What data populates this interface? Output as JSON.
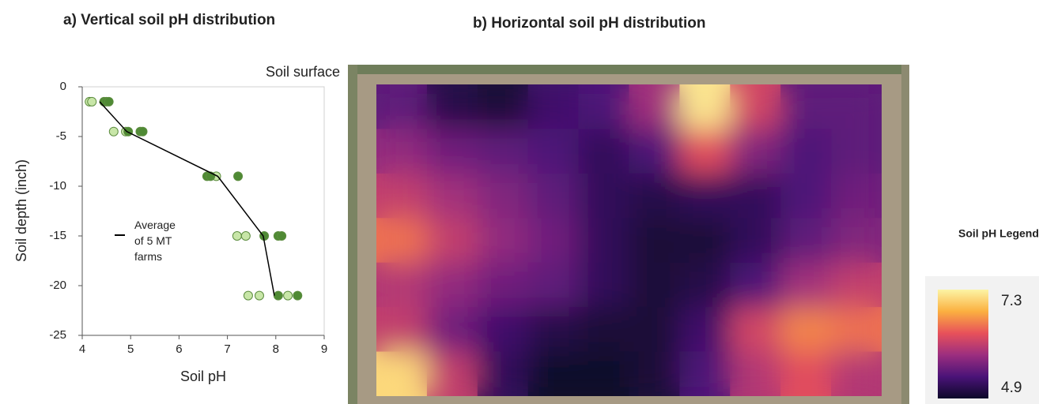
{
  "chart_data": [
    {
      "type": "scatter",
      "title": "a) Vertical soil pH distribution",
      "xlabel": "Soil pH",
      "ylabel": "Soil depth (inch)",
      "annotation": "Soil surface",
      "xlim": [
        4,
        9
      ],
      "xticks": [
        4,
        5,
        6,
        7,
        8,
        9
      ],
      "ylim": [
        -25,
        0
      ],
      "yticks": [
        0,
        -5,
        -10,
        -15,
        -20,
        -25
      ],
      "series": [
        {
          "color": "#c8e6a8",
          "x": [
            4.15,
            4.2,
            4.65,
            4.9,
            6.77,
            7.2,
            7.38,
            7.43,
            7.66,
            8.25
          ],
          "values": [
            -1.5,
            -1.5,
            -4.5,
            -4.5,
            -9,
            -15,
            -15,
            -21,
            -21,
            -21
          ]
        },
        {
          "color": "#4f8a34",
          "x": [
            4.45,
            4.5,
            4.55,
            4.95,
            5.2,
            5.25,
            6.58,
            6.65,
            7.22,
            7.76,
            8.05,
            8.12,
            8.05,
            8.45
          ],
          "values": [
            -1.5,
            -1.5,
            -1.5,
            -4.5,
            -4.5,
            -4.5,
            -9,
            -9,
            -9,
            -15,
            -15,
            -15,
            -21,
            -21
          ]
        },
        {
          "name": "Average of 5 MT farms",
          "type": "line",
          "color": "#000000",
          "x": [
            4.36,
            4.92,
            6.8,
            7.74,
            7.97
          ],
          "values": [
            -1.5,
            -4.5,
            -9,
            -15,
            -21
          ]
        }
      ]
    },
    {
      "type": "heatmap",
      "title": "b) Horizontal soil pH distribution",
      "colorbar_title": "Soil pH Legend",
      "clim": [
        4.9,
        7.3
      ],
      "cticks": [
        7.3,
        4.9
      ],
      "colormap": [
        "#0d0829",
        "#4a1378",
        "#9c2e7f",
        "#e8515a",
        "#fbb040",
        "#fcf4a5"
      ],
      "values": [
        [
          5.5,
          5.1,
          5.0,
          5.3,
          5.4,
          5.9,
          7.2,
          6.2,
          5.5,
          5.5
        ],
        [
          5.8,
          5.6,
          5.5,
          5.4,
          5.2,
          5.4,
          6.3,
          5.7,
          5.4,
          5.5
        ],
        [
          6.1,
          5.9,
          5.7,
          5.5,
          5.2,
          5.1,
          5.2,
          5.2,
          5.4,
          5.6
        ],
        [
          6.5,
          6.1,
          5.8,
          5.6,
          5.2,
          5.0,
          5.0,
          5.2,
          5.5,
          5.7
        ],
        [
          6.0,
          5.8,
          5.6,
          5.5,
          5.2,
          5.0,
          5.1,
          5.4,
          5.9,
          6.1
        ],
        [
          6.1,
          5.6,
          5.3,
          5.1,
          5.0,
          5.0,
          5.3,
          6.2,
          6.6,
          6.5
        ],
        [
          7.1,
          6.1,
          5.2,
          4.9,
          4.9,
          5.0,
          5.4,
          6.0,
          6.3,
          6.0
        ]
      ]
    }
  ]
}
